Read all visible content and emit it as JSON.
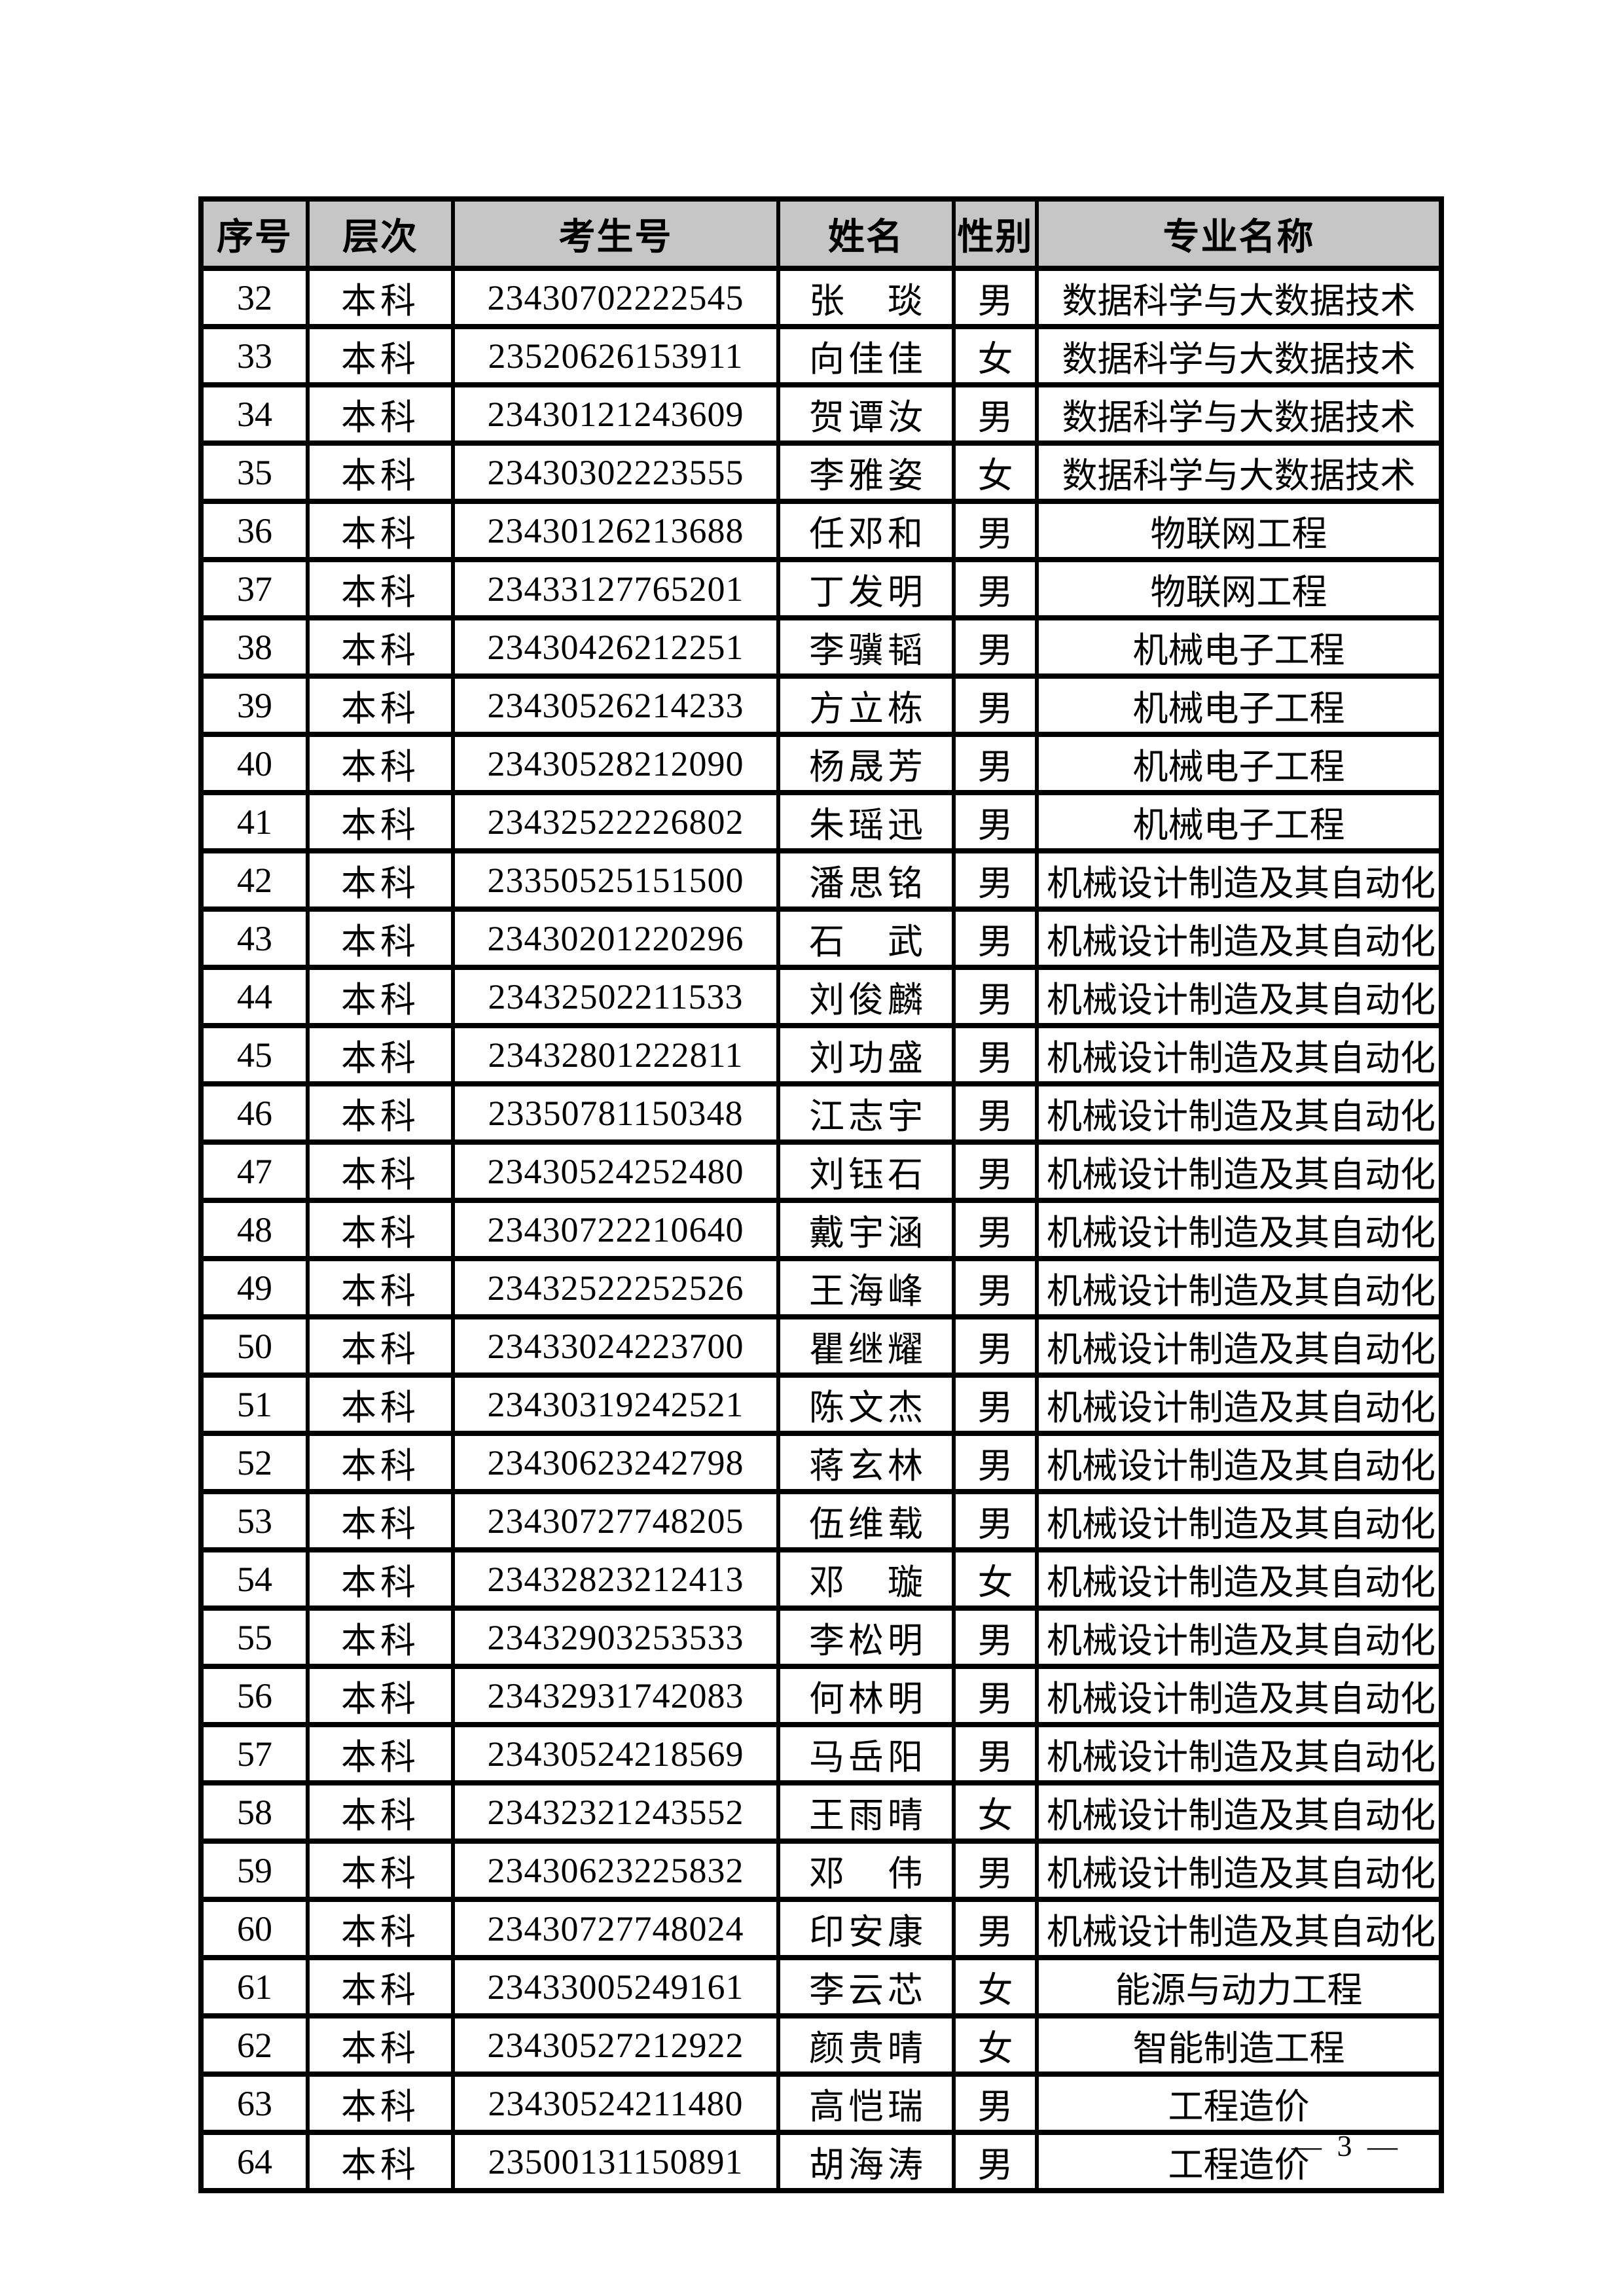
{
  "table": {
    "headers": [
      "序号",
      "层次",
      "考生号",
      "姓名",
      "性别",
      "专业名称"
    ],
    "rows": [
      [
        "32",
        "本科",
        "23430702222545",
        "张　琰",
        "男",
        "数据科学与大数据技术"
      ],
      [
        "33",
        "本科",
        "23520626153911",
        "向佳佳",
        "女",
        "数据科学与大数据技术"
      ],
      [
        "34",
        "本科",
        "23430121243609",
        "贺谭汝",
        "男",
        "数据科学与大数据技术"
      ],
      [
        "35",
        "本科",
        "23430302223555",
        "李雅姿",
        "女",
        "数据科学与大数据技术"
      ],
      [
        "36",
        "本科",
        "23430126213688",
        "任邓和",
        "男",
        "物联网工程"
      ],
      [
        "37",
        "本科",
        "23433127765201",
        "丁发明",
        "男",
        "物联网工程"
      ],
      [
        "38",
        "本科",
        "23430426212251",
        "李骥韬",
        "男",
        "机械电子工程"
      ],
      [
        "39",
        "本科",
        "23430526214233",
        "方立栋",
        "男",
        "机械电子工程"
      ],
      [
        "40",
        "本科",
        "23430528212090",
        "杨晟芳",
        "男",
        "机械电子工程"
      ],
      [
        "41",
        "本科",
        "23432522226802",
        "朱瑶迅",
        "男",
        "机械电子工程"
      ],
      [
        "42",
        "本科",
        "23350525151500",
        "潘思铭",
        "男",
        "机械设计制造及其自动化"
      ],
      [
        "43",
        "本科",
        "23430201220296",
        "石　武",
        "男",
        "机械设计制造及其自动化"
      ],
      [
        "44",
        "本科",
        "23432502211533",
        "刘俊麟",
        "男",
        "机械设计制造及其自动化"
      ],
      [
        "45",
        "本科",
        "23432801222811",
        "刘功盛",
        "男",
        "机械设计制造及其自动化"
      ],
      [
        "46",
        "本科",
        "23350781150348",
        "江志宇",
        "男",
        "机械设计制造及其自动化"
      ],
      [
        "47",
        "本科",
        "23430524252480",
        "刘钰石",
        "男",
        "机械设计制造及其自动化"
      ],
      [
        "48",
        "本科",
        "23430722210640",
        "戴宇涵",
        "男",
        "机械设计制造及其自动化"
      ],
      [
        "49",
        "本科",
        "23432522252526",
        "王海峰",
        "男",
        "机械设计制造及其自动化"
      ],
      [
        "50",
        "本科",
        "23433024223700",
        "瞿继耀",
        "男",
        "机械设计制造及其自动化"
      ],
      [
        "51",
        "本科",
        "23430319242521",
        "陈文杰",
        "男",
        "机械设计制造及其自动化"
      ],
      [
        "52",
        "本科",
        "23430623242798",
        "蒋玄林",
        "男",
        "机械设计制造及其自动化"
      ],
      [
        "53",
        "本科",
        "23430727748205",
        "伍维载",
        "男",
        "机械设计制造及其自动化"
      ],
      [
        "54",
        "本科",
        "23432823212413",
        "邓　璇",
        "女",
        "机械设计制造及其自动化"
      ],
      [
        "55",
        "本科",
        "23432903253533",
        "李松明",
        "男",
        "机械设计制造及其自动化"
      ],
      [
        "56",
        "本科",
        "23432931742083",
        "何林明",
        "男",
        "机械设计制造及其自动化"
      ],
      [
        "57",
        "本科",
        "23430524218569",
        "马岳阳",
        "男",
        "机械设计制造及其自动化"
      ],
      [
        "58",
        "本科",
        "23432321243552",
        "王雨晴",
        "女",
        "机械设计制造及其自动化"
      ],
      [
        "59",
        "本科",
        "23430623225832",
        "邓　伟",
        "男",
        "机械设计制造及其自动化"
      ],
      [
        "60",
        "本科",
        "23430727748024",
        "印安康",
        "男",
        "机械设计制造及其自动化"
      ],
      [
        "61",
        "本科",
        "23433005249161",
        "李云芯",
        "女",
        "能源与动力工程"
      ],
      [
        "62",
        "本科",
        "23430527212922",
        "颜贵晴",
        "女",
        "智能制造工程"
      ],
      [
        "63",
        "本科",
        "23430524211480",
        "高恺瑞",
        "男",
        "工程造价"
      ],
      [
        "64",
        "本科",
        "23500131150891",
        "胡海涛",
        "男",
        "工程造价"
      ]
    ]
  },
  "footer": {
    "page_number": "— 3 —"
  }
}
